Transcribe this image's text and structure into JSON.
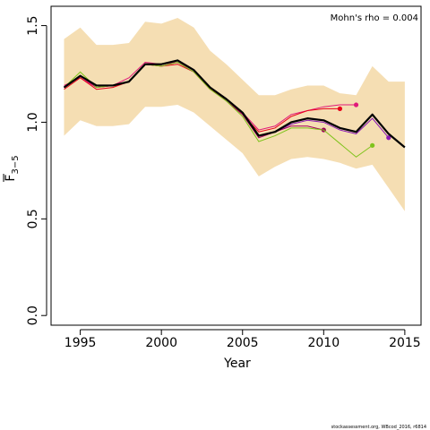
{
  "chart_data": {
    "type": "line",
    "xlabel": "Year",
    "ylabel_main": "F",
    "ylabel_sub": "3−5",
    "xlim": [
      1993.2,
      2016.0
    ],
    "ylim": [
      -0.05,
      1.6
    ],
    "x_ticks": [
      1995,
      2000,
      2005,
      2010,
      2015
    ],
    "y_ticks": [
      0.0,
      0.5,
      1.0,
      1.5
    ],
    "y_tick_labels": [
      "0.0",
      "0.5",
      "1.0",
      "1.5"
    ],
    "annotation": "Mohn's rho = 0.004",
    "credit": "stockassessment.org, WBcod_2016, r6814",
    "confidence_band": {
      "color": "#f5deb3",
      "x": [
        1994,
        1995,
        1996,
        1997,
        1998,
        1999,
        2000,
        2001,
        2002,
        2003,
        2004,
        2005,
        2006,
        2007,
        2008,
        2009,
        2010,
        2011,
        2012,
        2013,
        2014,
        2015
      ],
      "upper": [
        1.43,
        1.49,
        1.4,
        1.4,
        1.41,
        1.52,
        1.51,
        1.54,
        1.49,
        1.37,
        1.3,
        1.22,
        1.14,
        1.14,
        1.17,
        1.19,
        1.19,
        1.15,
        1.14,
        1.29,
        1.21,
        1.21
      ],
      "lower": [
        0.93,
        1.01,
        0.98,
        0.98,
        0.99,
        1.08,
        1.08,
        1.09,
        1.05,
        0.98,
        0.91,
        0.84,
        0.72,
        0.77,
        0.81,
        0.82,
        0.81,
        0.79,
        0.76,
        0.78,
        0.66,
        0.54
      ]
    },
    "main_series": {
      "color": "#000000",
      "x": [
        1994,
        1995,
        1996,
        1997,
        1998,
        1999,
        2000,
        2001,
        2002,
        2003,
        2004,
        2005,
        2006,
        2007,
        2008,
        2009,
        2010,
        2011,
        2012,
        2013,
        2014,
        2015
      ],
      "values": [
        1.18,
        1.24,
        1.19,
        1.19,
        1.21,
        1.3,
        1.3,
        1.32,
        1.27,
        1.18,
        1.12,
        1.05,
        0.93,
        0.95,
        1.0,
        1.02,
        1.01,
        0.97,
        0.95,
        1.04,
        0.94,
        0.87
      ]
    },
    "retro_series": [
      {
        "color": "#e0197a",
        "x": [
          1994,
          1995,
          1996,
          1997,
          1998,
          1999,
          2000,
          2001,
          2002,
          2003,
          2004,
          2005,
          2006,
          2007,
          2008,
          2009,
          2010,
          2011,
          2012
        ],
        "values": [
          1.19,
          1.23,
          1.18,
          1.19,
          1.23,
          1.31,
          1.3,
          1.31,
          1.27,
          1.18,
          1.12,
          1.05,
          0.96,
          0.98,
          1.04,
          1.06,
          1.08,
          1.09,
          1.09
        ]
      },
      {
        "color": "#e8001a",
        "x": [
          1994,
          1995,
          1996,
          1997,
          1998,
          1999,
          2000,
          2001,
          2002,
          2003,
          2004,
          2005,
          2006,
          2007,
          2008,
          2009,
          2010,
          2011
        ],
        "values": [
          1.17,
          1.23,
          1.17,
          1.18,
          1.21,
          1.3,
          1.29,
          1.3,
          1.26,
          1.17,
          1.12,
          1.04,
          0.95,
          0.97,
          1.03,
          1.06,
          1.07,
          1.07
        ]
      },
      {
        "color": "#a0005a",
        "x": [
          1994,
          1995,
          1996,
          1997,
          1998,
          1999,
          2000,
          2001,
          2002,
          2003,
          2004,
          2005,
          2006,
          2007,
          2008,
          2009,
          2010
        ],
        "values": [
          1.18,
          1.24,
          1.18,
          1.19,
          1.21,
          1.3,
          1.29,
          1.31,
          1.26,
          1.18,
          1.11,
          1.04,
          0.92,
          0.95,
          0.98,
          0.98,
          0.96
        ]
      },
      {
        "color": "#7fc31c",
        "x": [
          1994,
          1995,
          1996,
          1997,
          1998,
          1999,
          2000,
          2001,
          2002,
          2003,
          2004,
          2005,
          2006,
          2007,
          2008,
          2009,
          2010,
          2011,
          2012,
          2013
        ],
        "values": [
          1.18,
          1.26,
          1.18,
          1.19,
          1.21,
          1.3,
          1.29,
          1.31,
          1.26,
          1.17,
          1.11,
          1.03,
          0.9,
          0.93,
          0.97,
          0.97,
          0.96,
          0.89,
          0.82,
          0.88
        ]
      },
      {
        "color": "#8b19b5",
        "x": [
          1994,
          1995,
          1996,
          1997,
          1998,
          1999,
          2000,
          2001,
          2002,
          2003,
          2004,
          2005,
          2006,
          2007,
          2008,
          2009,
          2010,
          2011,
          2012,
          2013,
          2014
        ],
        "values": [
          1.18,
          1.24,
          1.19,
          1.19,
          1.21,
          1.3,
          1.3,
          1.32,
          1.27,
          1.18,
          1.12,
          1.05,
          0.93,
          0.95,
          0.99,
          1.01,
          1.0,
          0.96,
          0.94,
          1.02,
          0.92
        ]
      }
    ]
  }
}
